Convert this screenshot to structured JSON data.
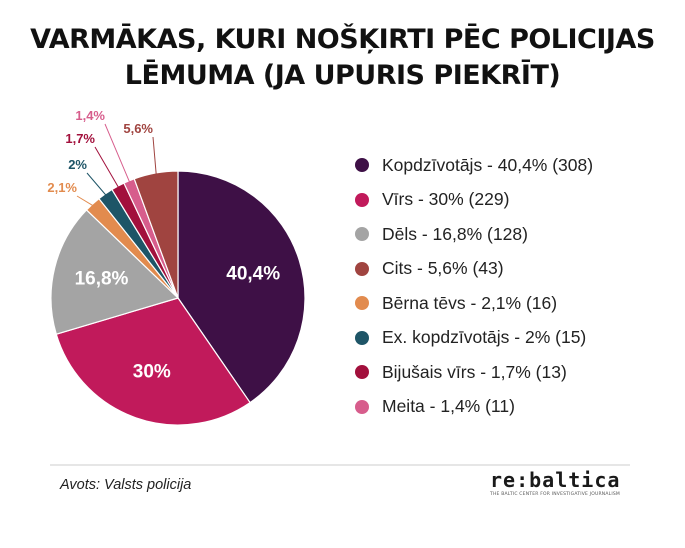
{
  "title_lines": [
    "VARMĀKAS, KURI NOŠĶIRTI PĒC POLICIJAS",
    "LĒMUMA (JA UPURIS PIEKRĪT)"
  ],
  "chart_data": {
    "type": "pie",
    "title": "VARMĀKAS, KURI NOŠĶIRTI PĒC POLICIJAS LĒMUMA (JA UPURIS PIEKRĪT)",
    "slices": [
      {
        "label": "Kopdzīvotājs",
        "value": 40.4,
        "count": 308,
        "display": "40,4%",
        "legend": "Kopdzīvotājs - 40,4% (308)",
        "color": "#3e1046",
        "label_pos": "inside"
      },
      {
        "label": "Vīrs",
        "value": 30,
        "count": 229,
        "display": "30%",
        "legend": "Vīrs - 30% (229)",
        "color": "#c11a5b",
        "label_pos": "inside"
      },
      {
        "label": "Dēls",
        "value": 16.8,
        "count": 128,
        "display": "16,8%",
        "legend": "Dēls - 16,8% (128)",
        "color": "#a4a4a4",
        "label_pos": "inside"
      },
      {
        "label": "Bērna tēvs",
        "value": 2.1,
        "count": 16,
        "display": "2,1%",
        "legend": "Bērna tēvs - 2,1% (16)",
        "color": "#e28b4e",
        "label_pos": "outside"
      },
      {
        "label": "Ex. kopdzīvotājs",
        "value": 2,
        "count": 15,
        "display": "2%",
        "legend": "Ex. kopdzīvotājs - 2% (15)",
        "color": "#1e5567",
        "label_pos": "outside"
      },
      {
        "label": "Bijušais vīrs",
        "value": 1.7,
        "count": 13,
        "display": "1,7%",
        "legend": "Bijušais vīrs - 1,7% (13)",
        "color": "#a2103c",
        "label_pos": "outside"
      },
      {
        "label": "Meita",
        "value": 1.4,
        "count": 11,
        "display": "1,4%",
        "legend": "Meita - 1,4% (11)",
        "color": "#d75d8c",
        "label_pos": "outside"
      },
      {
        "label": "Cits",
        "value": 5.6,
        "count": 43,
        "display": "5,6%",
        "legend": "Cits - 5,6% (43)",
        "color": "#a04440",
        "label_pos": "outside"
      }
    ],
    "legend_order": [
      "Kopdzīvotājs",
      "Vīrs",
      "Dēls",
      "Cits",
      "Bērna tēvs",
      "Ex. kopdzīvotājs",
      "Bijušais vīrs",
      "Meita"
    ],
    "legend_position": "right"
  },
  "source": "Avots: Valsts policija",
  "logo": {
    "brand": "re:baltica",
    "tagline": "THE BALTIC CENTER FOR INVESTIGATIVE JOURNALISM"
  }
}
